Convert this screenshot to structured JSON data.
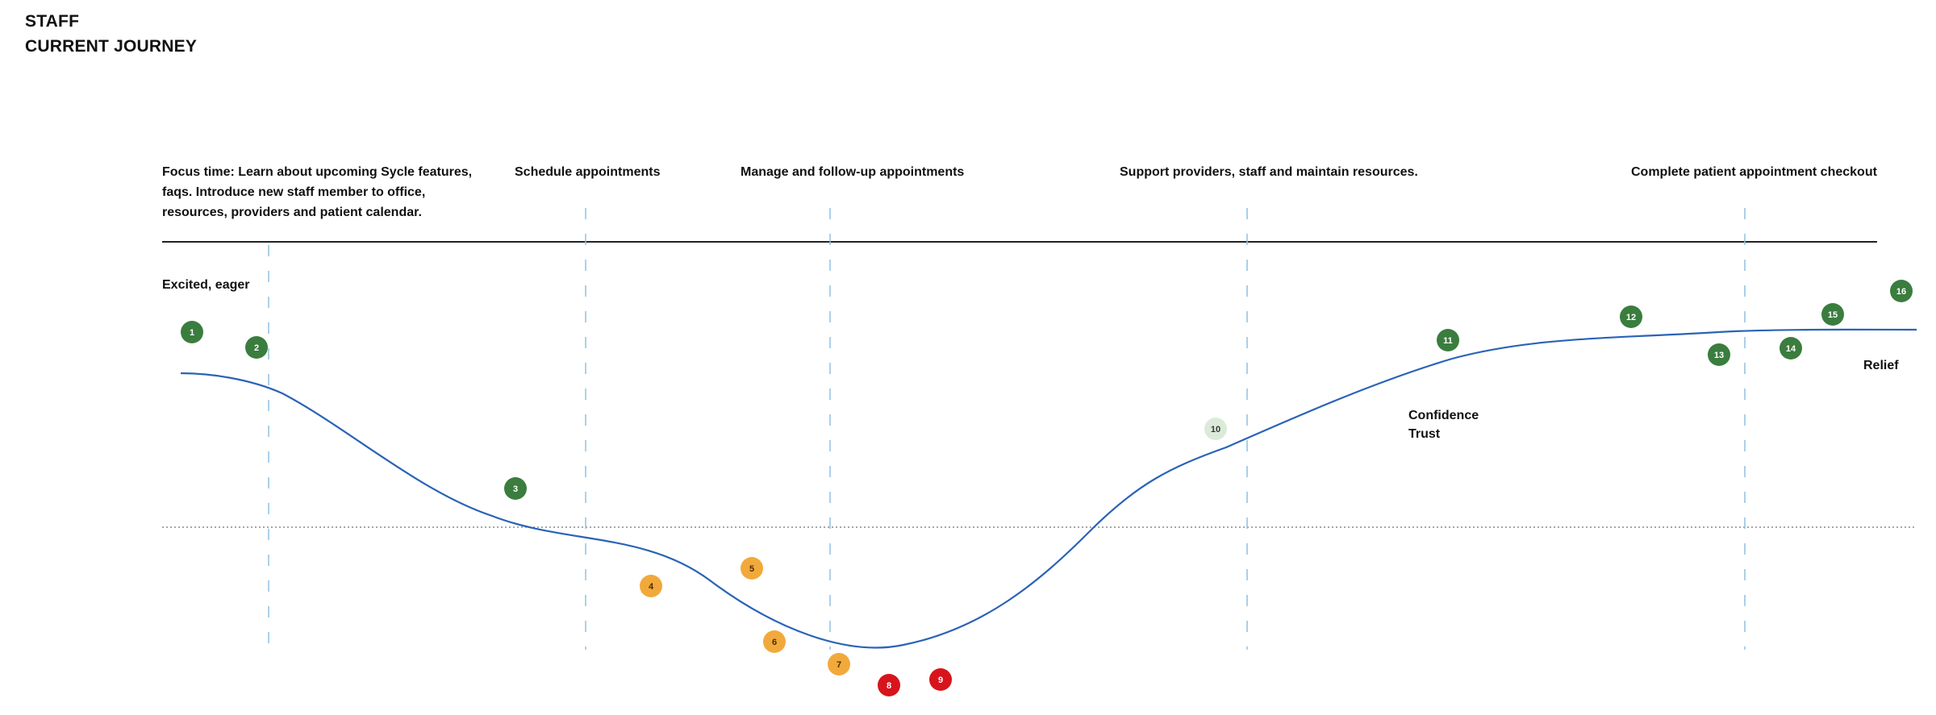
{
  "header": {
    "line1": "STAFF",
    "line2": "CURRENT JOURNEY"
  },
  "phases": [
    "Focus time: Learn about upcoming Sycle features, faqs. Introduce new staff member to office, resources, providers and patient calendar.",
    "Schedule appointments",
    "Manage and follow-up appointments",
    "Support providers, staff and maintain resources.",
    "Complete patient appointment checkout"
  ],
  "emotions": {
    "start": "Excited, eager",
    "confidence_line1": "Confidence",
    "confidence_line2": "Trust",
    "end": "Relief"
  },
  "colors": {
    "positive": "#3a7d3e",
    "neutral": "#dcebd9",
    "caution": "#f2a93b",
    "negative": "#d7141c",
    "curve": "#2a63b7",
    "divider": "#8fc0e3",
    "baseline": "#8a8a8a"
  },
  "markers": [
    {
      "label": "1",
      "status": "positive"
    },
    {
      "label": "2",
      "status": "positive"
    },
    {
      "label": "3",
      "status": "positive"
    },
    {
      "label": "4",
      "status": "caution"
    },
    {
      "label": "5",
      "status": "caution"
    },
    {
      "label": "6",
      "status": "caution"
    },
    {
      "label": "7",
      "status": "caution"
    },
    {
      "label": "8",
      "status": "negative"
    },
    {
      "label": "9",
      "status": "negative"
    },
    {
      "label": "10",
      "status": "neutral"
    },
    {
      "label": "11",
      "status": "positive"
    },
    {
      "label": "12",
      "status": "positive"
    },
    {
      "label": "13",
      "status": "positive"
    },
    {
      "label": "14",
      "status": "positive"
    },
    {
      "label": "15",
      "status": "positive"
    },
    {
      "label": "16",
      "status": "positive"
    }
  ]
}
